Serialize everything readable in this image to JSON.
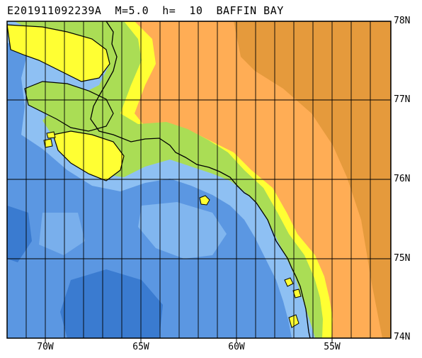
{
  "header": {
    "title": "E201911092239A  M=5.0  h=  10  BAFFIN BAY"
  },
  "axes": {
    "latitude_labels": [
      "78N",
      "77N",
      "76N",
      "75N",
      "74N"
    ],
    "longitude_labels": [
      "70W",
      "65W",
      "60W",
      "55W"
    ]
  },
  "colors": {
    "deep_ocean": "#3a7bd0",
    "ocean": "#5b97e2",
    "shallow_ocean": "#8ec0f3",
    "coast_yellow": "#ffff33",
    "coast_green": "#aadd55",
    "land_orange": "#ffad55",
    "land_dark_orange": "#e59a3c"
  }
}
